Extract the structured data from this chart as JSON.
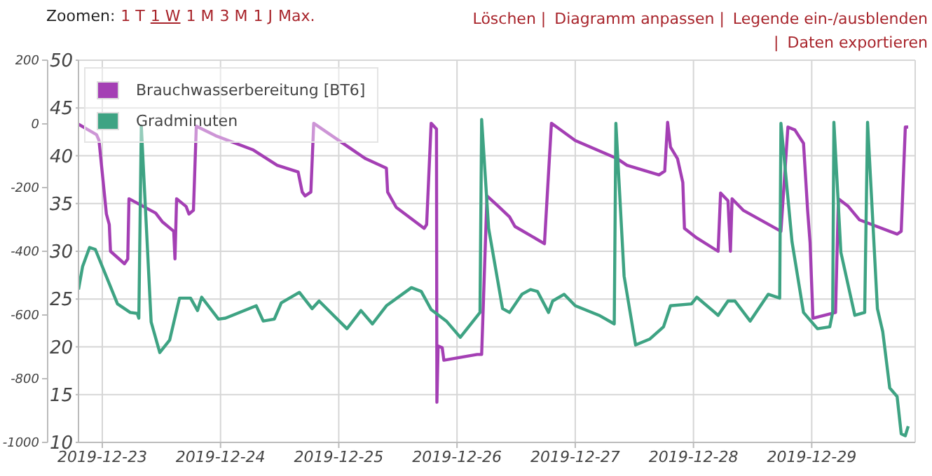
{
  "chart_data": {
    "type": "line",
    "annotations": [
      "Zoomen:",
      "1 T",
      "1 W",
      "1 M",
      "3 M",
      "1 J",
      "Max.",
      "Löschen |",
      "Diagramm anpassen |",
      "Legende ein-/ausblenden |",
      "Daten exportieren"
    ],
    "xlim": [
      "2019-12-22T19:10",
      "2019-12-29T21:00"
    ],
    "xticks": [
      "2019-12-23",
      "2019-12-24",
      "2019-12-25",
      "2019-12-26",
      "2019-12-27",
      "2019-12-28",
      "2019-12-29"
    ],
    "ylim": [
      10,
      50
    ],
    "yticks": [
      10,
      15,
      20,
      25,
      30,
      35,
      40,
      45,
      50
    ],
    "y2lim": [
      -1000,
      200
    ],
    "y2ticks": [
      -1000,
      -800,
      -600,
      -400,
      -200,
      0,
      200
    ],
    "grid": true,
    "legend": "top left",
    "series": [
      {
        "name": "Brauchwasserbereitung [BT6]",
        "color": "#a43fb4",
        "x": [
          "2019-12-22T19:10",
          "2019-12-22T22:50",
          "2019-12-22T23:20",
          "2019-12-23T00:50",
          "2019-12-23T01:25",
          "2019-12-23T01:40",
          "2019-12-23T04:30",
          "2019-12-23T05:10",
          "2019-12-23T05:25",
          "2019-12-23T10:50",
          "2019-12-23T12:10",
          "2019-12-23T14:30",
          "2019-12-23T14:45",
          "2019-12-23T15:05",
          "2019-12-23T17:00",
          "2019-12-23T17:35",
          "2019-12-23T18:30",
          "2019-12-23T19:05",
          "2019-12-23T23:00",
          "2019-12-24T06:40",
          "2019-12-24T11:30",
          "2019-12-24T15:45",
          "2019-12-24T16:35",
          "2019-12-24T17:10",
          "2019-12-24T18:20",
          "2019-12-24T18:55",
          "2019-12-24T23:10",
          "2019-12-25T05:25",
          "2019-12-25T09:40",
          "2019-12-25T09:55",
          "2019-12-25T11:40",
          "2019-12-25T17:20",
          "2019-12-25T17:50",
          "2019-12-25T18:45",
          "2019-12-25T19:50",
          "2019-12-25T19:55",
          "2019-12-25T20:10",
          "2019-12-25T21:00",
          "2019-12-25T21:20",
          "2019-12-26T04:05",
          "2019-12-26T05:00",
          "2019-12-26T06:05",
          "2019-12-26T08:25",
          "2019-12-26T10:40",
          "2019-12-26T11:45",
          "2019-12-26T17:45",
          "2019-12-26T19:10",
          "2019-12-27T00:00",
          "2019-12-27T08:30",
          "2019-12-27T10:30",
          "2019-12-27T17:00",
          "2019-12-27T18:10",
          "2019-12-27T18:45",
          "2019-12-27T19:20",
          "2019-12-27T20:45",
          "2019-12-27T21:50",
          "2019-12-27T22:10",
          "2019-12-28T00:40",
          "2019-12-28T05:00",
          "2019-12-28T05:30",
          "2019-12-28T07:00",
          "2019-12-28T07:30",
          "2019-12-28T07:50",
          "2019-12-28T10:05",
          "2019-12-28T17:45",
          "2019-12-28T19:10",
          "2019-12-28T20:35",
          "2019-12-28T22:20",
          "2019-12-28T23:10",
          "2019-12-28T23:40",
          "2019-12-29T00:15",
          "2019-12-29T04:50",
          "2019-12-29T05:25",
          "2019-12-29T07:25",
          "2019-12-29T09:40",
          "2019-12-29T17:20",
          "2019-12-29T18:10",
          "2019-12-29T19:00",
          "2019-12-29T19:35"
        ],
        "values": [
          43.3,
          42.2,
          41.6,
          33.9,
          32.8,
          30.0,
          28.7,
          29.2,
          35.5,
          34.0,
          33.1,
          32.1,
          29.2,
          35.5,
          34.7,
          33.9,
          34.3,
          43.1,
          42.1,
          40.6,
          39.0,
          38.3,
          36.2,
          35.8,
          36.2,
          43.4,
          41.9,
          39.7,
          38.7,
          36.2,
          34.6,
          32.4,
          32.8,
          43.4,
          42.8,
          14.2,
          20.1,
          19.9,
          18.6,
          19.2,
          19.2,
          35.8,
          34.7,
          33.6,
          32.6,
          30.8,
          43.4,
          41.6,
          39.7,
          39.0,
          38.0,
          38.4,
          43.5,
          40.9,
          39.7,
          37.2,
          32.4,
          31.4,
          30.0,
          36.1,
          35.3,
          30.0,
          35.5,
          34.3,
          32.1,
          43.0,
          42.7,
          41.3,
          34.3,
          30.9,
          23.0,
          23.6,
          35.5,
          34.7,
          33.3,
          31.8,
          32.1,
          43.0,
          43.0
        ]
      },
      {
        "name": "Gradminuten",
        "color": "#3ea383",
        "axis": "y2",
        "x": [
          "2019-12-22T19:10",
          "2019-12-22T20:00",
          "2019-12-22T21:25",
          "2019-12-22T22:35",
          "2019-12-23T03:05",
          "2019-12-23T05:40",
          "2019-12-23T07:05",
          "2019-12-23T07:25",
          "2019-12-23T07:55",
          "2019-12-23T09:55",
          "2019-12-23T11:40",
          "2019-12-23T13:40",
          "2019-12-23T15:40",
          "2019-12-23T17:55",
          "2019-12-23T19:20",
          "2019-12-23T20:10",
          "2019-12-23T23:35",
          "2019-12-24T01:00",
          "2019-12-24T07:15",
          "2019-12-24T08:40",
          "2019-12-24T10:55",
          "2019-12-24T12:20",
          "2019-12-24T16:00",
          "2019-12-24T18:35",
          "2019-12-24T20:00",
          "2019-12-25T01:40",
          "2019-12-25T04:30",
          "2019-12-25T06:50",
          "2019-12-25T09:40",
          "2019-12-25T14:45",
          "2019-12-25T16:45",
          "2019-12-25T18:45",
          "2019-12-25T21:50",
          "2019-12-26T00:40",
          "2019-12-26T04:40",
          "2019-12-26T05:00",
          "2019-12-26T06:25",
          "2019-12-26T09:15",
          "2019-12-26T10:40",
          "2019-12-26T13:10",
          "2019-12-26T14:55",
          "2019-12-26T16:20",
          "2019-12-26T18:35",
          "2019-12-26T19:25",
          "2019-12-26T21:45",
          "2019-12-27T00:00",
          "2019-12-27T04:50",
          "2019-12-27T07:55",
          "2019-12-27T08:15",
          "2019-12-27T09:55",
          "2019-12-27T12:15",
          "2019-12-27T15:05",
          "2019-12-27T17:55",
          "2019-12-27T19:20",
          "2019-12-27T23:35",
          "2019-12-28T00:40",
          "2019-12-28T05:00",
          "2019-12-28T07:00",
          "2019-12-28T08:25",
          "2019-12-28T11:30",
          "2019-12-28T15:10",
          "2019-12-28T17:30",
          "2019-12-28T17:45",
          "2019-12-28T20:00",
          "2019-12-28T22:20",
          "2019-12-29T01:10",
          "2019-12-29T03:40",
          "2019-12-29T04:15",
          "2019-12-29T04:30",
          "2019-12-29T05:55",
          "2019-12-29T08:45",
          "2019-12-29T10:45",
          "2019-12-29T11:20",
          "2019-12-29T13:20",
          "2019-12-29T14:25",
          "2019-12-29T15:50",
          "2019-12-29T17:20",
          "2019-12-29T18:10",
          "2019-12-29T19:00",
          "2019-12-29T19:35"
        ],
        "values": [
          -520,
          -448,
          -388,
          -394,
          -565,
          -592,
          -595,
          -610,
          -7,
          -622,
          -718,
          -679,
          -547,
          -547,
          -586,
          -544,
          -613,
          -610,
          -571,
          -619,
          -613,
          -562,
          -529,
          -580,
          -556,
          -643,
          -586,
          -628,
          -571,
          -514,
          -526,
          -583,
          -619,
          -670,
          -592,
          14,
          -328,
          -580,
          -592,
          -535,
          -520,
          -526,
          -592,
          -556,
          -535,
          -571,
          -601,
          -628,
          2,
          -478,
          -694,
          -676,
          -637,
          -571,
          -565,
          -544,
          -601,
          -556,
          -556,
          -619,
          -535,
          -547,
          2,
          -370,
          -592,
          -643,
          -637,
          -592,
          5,
          -403,
          -601,
          -592,
          5,
          -580,
          -652,
          -829,
          -856,
          -973,
          -979,
          -949
        ]
      }
    ]
  }
}
